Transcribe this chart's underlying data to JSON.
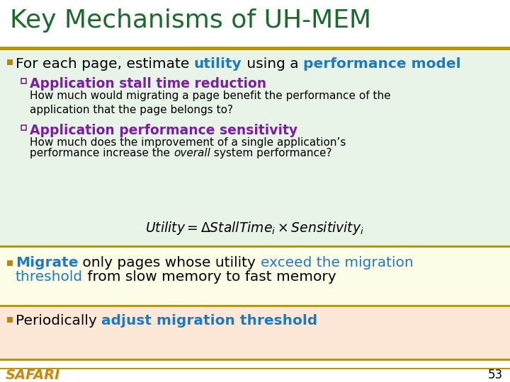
{
  "title": "Key Mechanisms of UH-MEM",
  "title_color": "#1a6b2a",
  "title_fontsize": 26,
  "bg_color": "#ffffff",
  "gold_line_color": "#b8960c",
  "sec1_bg": "#e8f4e8",
  "sec2_bg": "#fefee8",
  "sec3_bg": "#fde8d8",
  "bullet_color": "#b8860b",
  "blue_color": "#1e7ac0",
  "purple_color": "#7b1fa2",
  "black_color": "#000000",
  "footer_text": "SAFARI",
  "footer_color": "#cc8800",
  "page_number": "53"
}
